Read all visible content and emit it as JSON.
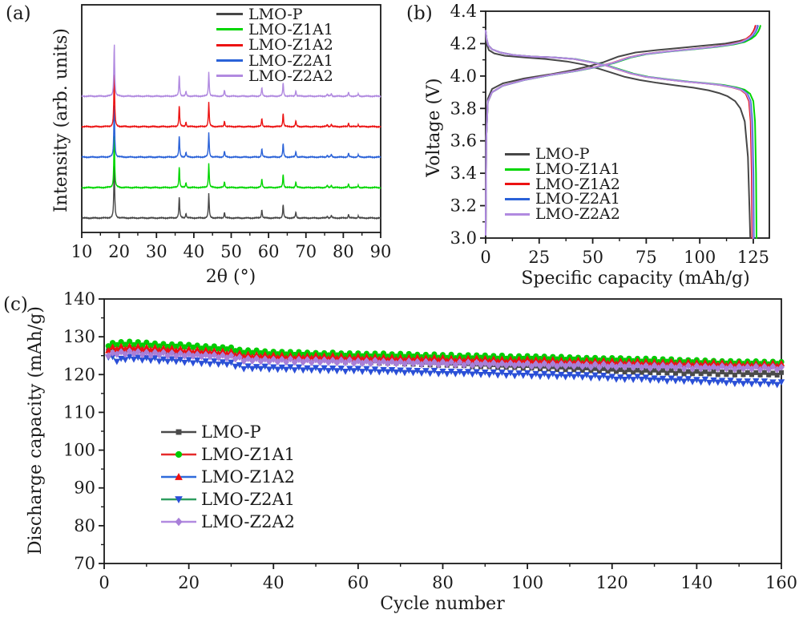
{
  "chart_data": [
    {
      "tag": "(a)",
      "type": "line",
      "xlabel": "2θ (°)",
      "ylabel": "Intensity (arb. units)",
      "xlim": [
        10,
        90
      ],
      "xticks": [
        10,
        20,
        30,
        40,
        50,
        60,
        70,
        80,
        90
      ],
      "x_minor_step": 5,
      "grid": false,
      "legend_position": "top-right-inside",
      "peaks_2theta": [
        18.7,
        36.1,
        37.9,
        44.0,
        48.2,
        58.2,
        63.9,
        67.3,
        75.7,
        76.8,
        81.4,
        84.0
      ],
      "peak_rel_heights": [
        100,
        40,
        9,
        46,
        11,
        16,
        26,
        11,
        4,
        5,
        7,
        4
      ],
      "series_bottom_to_top": [
        {
          "name": "LMO-P",
          "color": "#474747"
        },
        {
          "name": "LMO-Z1A1",
          "color": "#00d600"
        },
        {
          "name": "LMO-Z2A1",
          "color": "#2a62d8"
        },
        {
          "name": "LMO-Z1A2",
          "color": "#ec1212"
        },
        {
          "name": "LMO-Z2A2",
          "color": "#b18ae0"
        }
      ],
      "legend": [
        {
          "label": "LMO-P",
          "color": "#474747"
        },
        {
          "label": "LMO-Z1A1",
          "color": "#00d600"
        },
        {
          "label": "LMO-Z1A2",
          "color": "#ec1212"
        },
        {
          "label": "LMO-Z2A1",
          "color": "#2a62d8"
        },
        {
          "label": "LMO-Z2A2",
          "color": "#b18ae0"
        }
      ]
    },
    {
      "tag": "(b)",
      "type": "line",
      "xlabel": "Specific capacity (mAh/g)",
      "ylabel": "Voltage (V)",
      "xlim": [
        0,
        132.5
      ],
      "xticks": [
        0,
        25,
        50,
        75,
        100,
        125
      ],
      "x_minor_step": 12.5,
      "ylim": [
        3.0,
        4.4
      ],
      "yticks": [
        3.0,
        3.2,
        3.4,
        3.6,
        3.8,
        4.0,
        4.2,
        4.4
      ],
      "ytick_labels": [
        "3.0",
        "3.2",
        "3.4",
        "3.6",
        "3.8",
        "4.0",
        "4.2",
        "4.4"
      ],
      "y_minor_step": 0.1,
      "grid": false,
      "legend_position": "bottom-left-inside",
      "coated_charge_shape": [
        [
          0,
          3.02
        ],
        [
          0.3,
          3.62
        ],
        [
          1,
          3.84
        ],
        [
          3,
          3.9
        ],
        [
          8,
          3.94
        ],
        [
          18,
          3.975
        ],
        [
          30,
          4.005
        ],
        [
          42,
          4.03
        ],
        [
          52,
          4.055
        ],
        [
          60,
          4.08
        ],
        [
          68,
          4.115
        ],
        [
          75,
          4.135
        ],
        [
          85,
          4.15
        ],
        [
          97,
          4.165
        ],
        [
          108,
          4.18
        ],
        [
          116,
          4.195
        ],
        [
          121,
          4.21
        ],
        [
          124,
          4.23
        ],
        [
          126,
          4.25
        ],
        [
          127.3,
          4.275
        ],
        [
          128.0,
          4.295
        ],
        [
          128.3,
          4.31
        ]
      ],
      "coated_discharge_shape": [
        [
          0,
          4.28
        ],
        [
          0.4,
          4.23
        ],
        [
          1.2,
          4.19
        ],
        [
          3,
          4.165
        ],
        [
          7,
          4.145
        ],
        [
          13,
          4.13
        ],
        [
          22,
          4.12
        ],
        [
          32,
          4.115
        ],
        [
          42,
          4.105
        ],
        [
          50,
          4.085
        ],
        [
          57,
          4.065
        ],
        [
          63,
          4.04
        ],
        [
          69,
          4.015
        ],
        [
          76,
          3.995
        ],
        [
          85,
          3.98
        ],
        [
          95,
          3.965
        ],
        [
          104,
          3.955
        ],
        [
          111,
          3.945
        ],
        [
          117,
          3.93
        ],
        [
          121,
          3.915
        ],
        [
          123.5,
          3.89
        ],
        [
          125,
          3.845
        ],
        [
          125.8,
          3.72
        ],
        [
          126.3,
          3.4
        ],
        [
          126.5,
          3.0
        ]
      ],
      "series": [
        {
          "name": "LMO-P",
          "color": "#474747",
          "charge": [
            [
              0,
              3.02
            ],
            [
              0.3,
              3.66
            ],
            [
              1,
              3.86
            ],
            [
              3,
              3.92
            ],
            [
              8,
              3.955
            ],
            [
              18,
              3.985
            ],
            [
              30,
              4.01
            ],
            [
              40,
              4.035
            ],
            [
              48,
              4.06
            ],
            [
              55,
              4.085
            ],
            [
              62,
              4.12
            ],
            [
              70,
              4.145
            ],
            [
              80,
              4.16
            ],
            [
              92,
              4.175
            ],
            [
              104,
              4.19
            ],
            [
              112,
              4.2
            ],
            [
              118,
              4.215
            ],
            [
              122,
              4.23
            ],
            [
              124.5,
              4.25
            ],
            [
              126,
              4.28
            ],
            [
              126.8,
              4.31
            ]
          ],
          "discharge": [
            [
              0,
              4.24
            ],
            [
              0.4,
              4.2
            ],
            [
              1.5,
              4.16
            ],
            [
              4,
              4.14
            ],
            [
              9,
              4.125
            ],
            [
              18,
              4.115
            ],
            [
              28,
              4.105
            ],
            [
              38,
              4.09
            ],
            [
              46,
              4.07
            ],
            [
              53,
              4.045
            ],
            [
              59,
              4.02
            ],
            [
              65,
              3.995
            ],
            [
              72,
              3.975
            ],
            [
              80,
              3.958
            ],
            [
              89,
              3.942
            ],
            [
              97,
              3.928
            ],
            [
              104,
              3.912
            ],
            [
              109,
              3.895
            ],
            [
              113,
              3.875
            ],
            [
              116.5,
              3.845
            ],
            [
              119,
              3.8
            ],
            [
              121,
              3.72
            ],
            [
              122.5,
              3.5
            ],
            [
              123.3,
              3.15
            ],
            [
              123.6,
              3.0
            ]
          ]
        },
        {
          "name": "LMO-Z1A1",
          "color": "#00d600",
          "cap_scale_charge": 1.0,
          "cap_scale_discharge": 1.0
        },
        {
          "name": "LMO-Z1A2",
          "color": "#ec1212",
          "cap_scale_charge": 0.982,
          "cap_scale_discharge": 0.984
        },
        {
          "name": "LMO-Z2A1",
          "color": "#2a62d8",
          "cap_scale_charge": 0.991,
          "cap_scale_discharge": 0.99
        },
        {
          "name": "LMO-Z2A2",
          "color": "#b18ae0",
          "cap_scale_charge": 0.987,
          "cap_scale_discharge": 0.987
        }
      ],
      "legend": [
        {
          "label": "LMO-P",
          "color": "#474747"
        },
        {
          "label": "LMO-Z1A1",
          "color": "#00d600"
        },
        {
          "label": "LMO-Z1A2",
          "color": "#ec1212"
        },
        {
          "label": "LMO-Z2A1",
          "color": "#2a62d8"
        },
        {
          "label": "LMO-Z2A2",
          "color": "#b18ae0"
        }
      ]
    },
    {
      "tag": "(c)",
      "type": "scatter-line",
      "xlabel": "Cycle number",
      "ylabel": "Discharge capacity (mAh/g)",
      "xlim": [
        0,
        160
      ],
      "xticks": [
        0,
        20,
        40,
        60,
        80,
        100,
        120,
        140,
        160
      ],
      "x_minor_step": 10,
      "ylim": [
        70,
        140
      ],
      "yticks": [
        70,
        80,
        90,
        100,
        110,
        120,
        130,
        140
      ],
      "y_minor_step": 5,
      "grid": false,
      "legend_position": "center-left-inside",
      "oscillation": 0.42,
      "cycles": [
        1,
        160
      ],
      "series": [
        {
          "name": "LMO-P",
          "line_color": "#4a4a4a",
          "marker": "square",
          "marker_color": "#4a4a4a",
          "points": [
            [
              1,
              126.6
            ],
            [
              3,
              126.7
            ],
            [
              5,
              126.6
            ],
            [
              10,
              126.3
            ],
            [
              15,
              126.1
            ],
            [
              20,
              125.9
            ],
            [
              25,
              125.7
            ],
            [
              30,
              125.4
            ],
            [
              33,
              124.8
            ],
            [
              40,
              124.4
            ],
            [
              50,
              124.0
            ],
            [
              60,
              123.6
            ],
            [
              70,
              123.2
            ],
            [
              80,
              122.8
            ],
            [
              90,
              122.4
            ],
            [
              100,
              122.0
            ],
            [
              110,
              121.6
            ],
            [
              120,
              121.1
            ],
            [
              130,
              120.8
            ],
            [
              140,
              120.5
            ],
            [
              150,
              120.3
            ],
            [
              160,
              120.1
            ]
          ]
        },
        {
          "name": "LMO-Z1A1",
          "line_color": "#e62a2a",
          "marker": "circle",
          "marker_color": "#00cc00",
          "points": [
            [
              1,
              127.8
            ],
            [
              3,
              128.2
            ],
            [
              6,
              128.3
            ],
            [
              10,
              128.1
            ],
            [
              15,
              127.8
            ],
            [
              20,
              127.5
            ],
            [
              25,
              127.2
            ],
            [
              30,
              126.9
            ],
            [
              33,
              126.1
            ],
            [
              40,
              125.8
            ],
            [
              50,
              125.5
            ],
            [
              60,
              125.3
            ],
            [
              70,
              125.1
            ],
            [
              80,
              124.9
            ],
            [
              90,
              124.7
            ],
            [
              100,
              124.5
            ],
            [
              110,
              124.3
            ],
            [
              120,
              124.0
            ],
            [
              130,
              123.8
            ],
            [
              140,
              123.5
            ],
            [
              150,
              123.2
            ],
            [
              160,
              123.1
            ]
          ]
        },
        {
          "name": "LMO-Z1A2",
          "line_color": "#2f6bdb",
          "marker": "triangle-up",
          "marker_color": "#ee1111",
          "points": [
            [
              1,
              126.7
            ],
            [
              3,
              127.1
            ],
            [
              6,
              127.2
            ],
            [
              10,
              127.0
            ],
            [
              15,
              126.7
            ],
            [
              20,
              126.4
            ],
            [
              25,
              126.1
            ],
            [
              30,
              125.8
            ],
            [
              33,
              125.1
            ],
            [
              40,
              124.9
            ],
            [
              50,
              124.7
            ],
            [
              60,
              124.5
            ],
            [
              70,
              124.3
            ],
            [
              80,
              124.1
            ],
            [
              90,
              123.9
            ],
            [
              100,
              123.7
            ],
            [
              110,
              123.5
            ],
            [
              120,
              123.3
            ],
            [
              130,
              123.1
            ],
            [
              140,
              122.9
            ],
            [
              150,
              122.7
            ],
            [
              160,
              122.6
            ]
          ]
        },
        {
          "name": "LMO-Z2A1",
          "line_color": "#2f9e60",
          "marker": "triangle-down",
          "marker_color": "#2b4fd8",
          "points": [
            [
              1,
              124.9
            ],
            [
              3,
              123.8
            ],
            [
              6,
              124.4
            ],
            [
              10,
              124.1
            ],
            [
              15,
              123.8
            ],
            [
              20,
              123.5
            ],
            [
              25,
              123.2
            ],
            [
              30,
              122.9
            ],
            [
              33,
              121.9
            ],
            [
              40,
              121.7
            ],
            [
              50,
              121.4
            ],
            [
              60,
              121.2
            ],
            [
              70,
              120.9
            ],
            [
              80,
              120.6
            ],
            [
              90,
              120.3
            ],
            [
              100,
              120.0
            ],
            [
              110,
              119.7
            ],
            [
              118,
              119.4
            ],
            [
              122,
              118.9
            ],
            [
              126,
              119.1
            ],
            [
              130,
              118.8
            ],
            [
              140,
              118.4
            ],
            [
              150,
              118.0
            ],
            [
              160,
              117.7
            ]
          ]
        },
        {
          "name": "LMO-Z2A2",
          "line_color": "#b18ae0",
          "marker": "diamond",
          "marker_color": "#a87fd8",
          "points": [
            [
              1,
              125.3
            ],
            [
              3,
              125.7
            ],
            [
              6,
              125.8
            ],
            [
              10,
              125.6
            ],
            [
              15,
              125.4
            ],
            [
              20,
              125.2
            ],
            [
              25,
              125.0
            ],
            [
              30,
              124.7
            ],
            [
              33,
              124.0
            ],
            [
              40,
              123.8
            ],
            [
              50,
              123.6
            ],
            [
              60,
              123.4
            ],
            [
              70,
              123.2
            ],
            [
              80,
              123.0
            ],
            [
              90,
              122.8
            ],
            [
              100,
              122.6
            ],
            [
              110,
              122.5
            ],
            [
              120,
              122.3
            ],
            [
              130,
              122.1
            ],
            [
              140,
              121.9
            ],
            [
              150,
              121.8
            ],
            [
              160,
              121.7
            ]
          ]
        }
      ]
    }
  ]
}
